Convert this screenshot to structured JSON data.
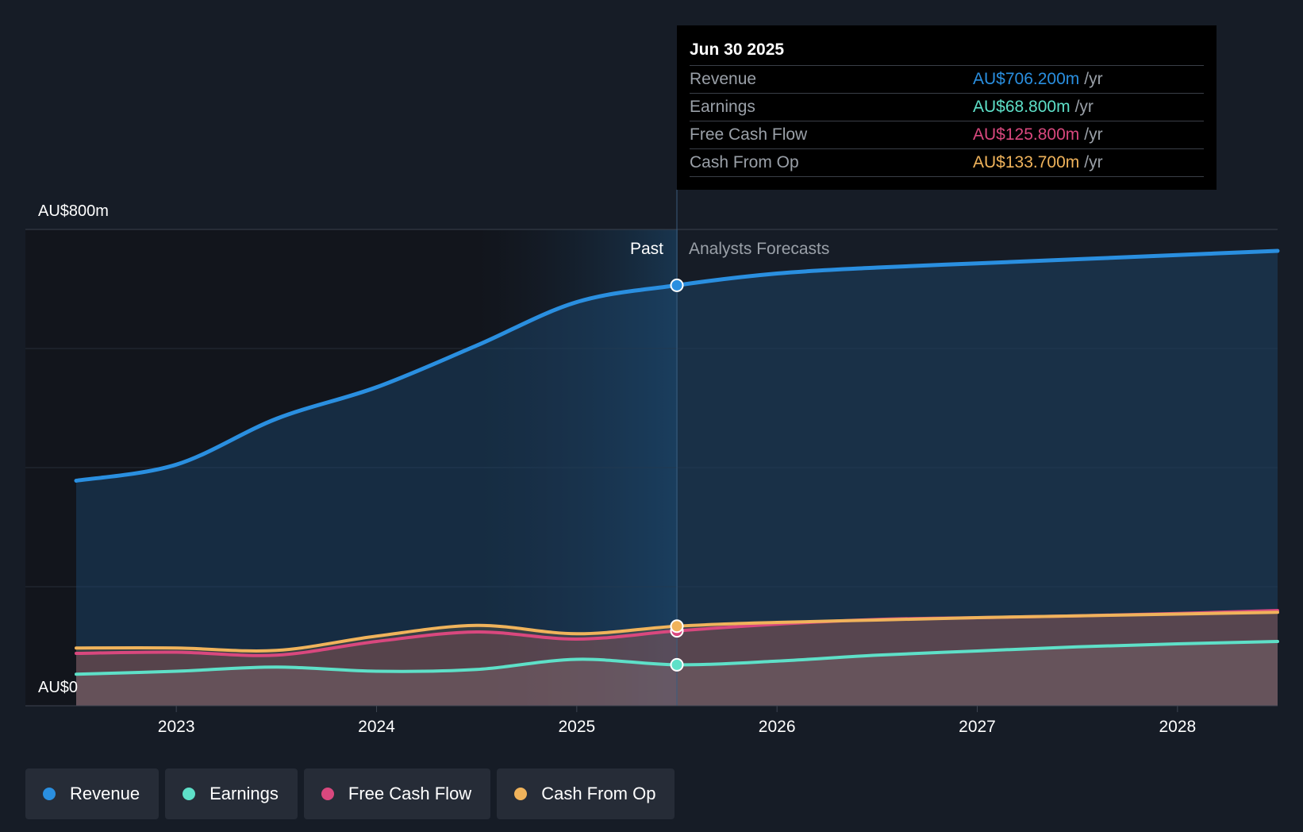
{
  "chart_data": {
    "type": "area",
    "y_axis": {
      "min": 0,
      "max": 800,
      "unit": "AU$m",
      "labels": [
        "AU$800m",
        "AU$0"
      ]
    },
    "x_axis": {
      "range": [
        2022.5,
        2028.5
      ],
      "ticks": [
        "2023",
        "2024",
        "2025",
        "2026",
        "2027",
        "2028"
      ]
    },
    "divider": {
      "x": 2025.5,
      "past_label": "Past",
      "forecast_label": "Analysts Forecasts"
    },
    "series": [
      {
        "name": "Revenue",
        "color": "#2a8fe0",
        "points": [
          [
            2022.5,
            378
          ],
          [
            2023.0,
            405
          ],
          [
            2023.5,
            482
          ],
          [
            2024.0,
            535
          ],
          [
            2024.5,
            605
          ],
          [
            2025.0,
            678
          ],
          [
            2025.5,
            706.2
          ],
          [
            2026.0,
            726
          ],
          [
            2026.5,
            736
          ],
          [
            2027.0,
            743
          ],
          [
            2027.5,
            750
          ],
          [
            2028.0,
            757
          ],
          [
            2028.5,
            764
          ]
        ]
      },
      {
        "name": "Earnings",
        "color": "#5ee0c8",
        "points": [
          [
            2022.5,
            53
          ],
          [
            2023.0,
            58
          ],
          [
            2023.5,
            65
          ],
          [
            2024.0,
            58
          ],
          [
            2024.5,
            61
          ],
          [
            2025.0,
            78
          ],
          [
            2025.5,
            68.8
          ],
          [
            2026.0,
            75
          ],
          [
            2026.5,
            85
          ],
          [
            2027.0,
            92
          ],
          [
            2027.5,
            99
          ],
          [
            2028.0,
            104
          ],
          [
            2028.5,
            108
          ]
        ]
      },
      {
        "name": "Free Cash Flow",
        "color": "#d9487e",
        "points": [
          [
            2022.5,
            88
          ],
          [
            2023.0,
            90
          ],
          [
            2023.5,
            85
          ],
          [
            2024.0,
            108
          ],
          [
            2024.5,
            124
          ],
          [
            2025.0,
            112
          ],
          [
            2025.5,
            125.8
          ],
          [
            2026.0,
            137
          ],
          [
            2026.5,
            145
          ],
          [
            2027.0,
            148
          ],
          [
            2027.5,
            151
          ],
          [
            2028.0,
            155
          ],
          [
            2028.5,
            160
          ]
        ]
      },
      {
        "name": "Cash From Op",
        "color": "#f0b35b",
        "points": [
          [
            2022.5,
            97
          ],
          [
            2023.0,
            97
          ],
          [
            2023.5,
            93
          ],
          [
            2024.0,
            117
          ],
          [
            2024.5,
            135
          ],
          [
            2025.0,
            121
          ],
          [
            2025.5,
            133.7
          ],
          [
            2026.0,
            140
          ],
          [
            2026.5,
            144
          ],
          [
            2027.0,
            148
          ],
          [
            2027.5,
            151
          ],
          [
            2028.0,
            154
          ],
          [
            2028.5,
            157
          ]
        ]
      }
    ],
    "tooltip": {
      "date": "Jun 30 2025",
      "rows": [
        {
          "label": "Revenue",
          "value": "AU$706.200m",
          "unit": "/yr",
          "color": "#2a8fe0"
        },
        {
          "label": "Earnings",
          "value": "AU$68.800m",
          "unit": "/yr",
          "color": "#5ee0c8"
        },
        {
          "label": "Free Cash Flow",
          "value": "AU$125.800m",
          "unit": "/yr",
          "color": "#d9487e"
        },
        {
          "label": "Cash From Op",
          "value": "AU$133.700m",
          "unit": "/yr",
          "color": "#f0b35b"
        }
      ]
    }
  },
  "legend": [
    {
      "label": "Revenue",
      "color": "#2a8fe0"
    },
    {
      "label": "Earnings",
      "color": "#5ee0c8"
    },
    {
      "label": "Free Cash Flow",
      "color": "#d9487e"
    },
    {
      "label": "Cash From Op",
      "color": "#f0b35b"
    }
  ]
}
